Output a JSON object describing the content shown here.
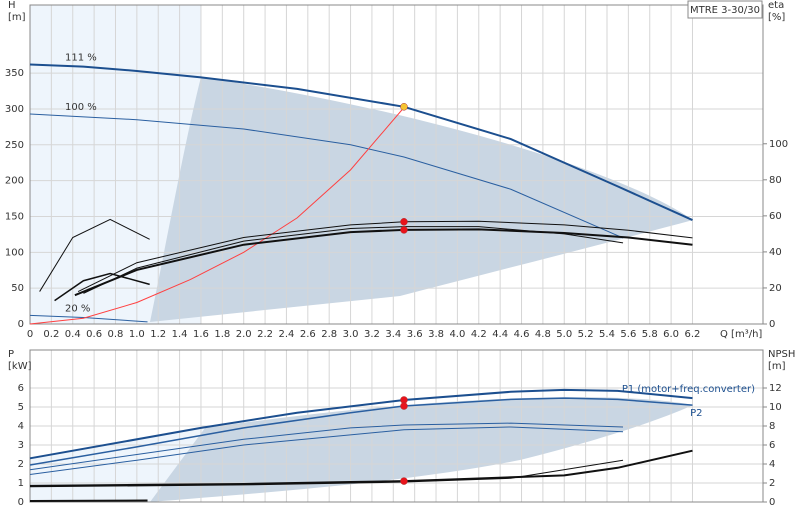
{
  "chart_data": [
    {
      "type": "line",
      "title": "MTRE 3-30/30",
      "ylabel": [
        "H",
        "[m]"
      ],
      "y2label": [
        "eta",
        "[%]"
      ],
      "xlabel": "Q [m³/h]",
      "xlim": [
        0,
        6.86
      ],
      "ylim": [
        0,
        445
      ],
      "y2lim": [
        0,
        177
      ],
      "grid": true,
      "xtick_labels": true,
      "xticks": [
        0,
        0.2,
        0.4,
        0.6,
        0.8,
        {
          "value": 1,
          "label": "1.0"
        },
        1.2,
        1.4,
        1.6,
        1.8,
        {
          "value": 2,
          "label": "2.0"
        },
        2.2,
        2.4,
        2.6,
        2.8,
        {
          "value": 3,
          "label": "3.0"
        },
        3.2,
        3.4,
        3.6,
        3.8,
        {
          "value": 4,
          "label": "4.0"
        },
        4.2,
        4.4,
        4.6,
        4.8,
        {
          "value": 5,
          "label": "5.0"
        },
        5.2,
        5.4,
        5.6,
        5.8,
        {
          "value": 6,
          "label": "6.0"
        },
        6.2
      ],
      "yticks": [
        0,
        50,
        100,
        150,
        200,
        250,
        300,
        350
      ],
      "y2ticks": [
        0,
        20,
        40,
        60,
        80,
        100
      ],
      "series": [
        {
          "name": "111 %",
          "color": "#1c4f8f",
          "width": 2,
          "x": [
            0,
            0.5,
            1,
            1.6,
            2.5,
            3.5,
            4.5,
            5.5,
            6.2
          ],
          "values": [
            362,
            359,
            353,
            344,
            328,
            303,
            258,
            192,
            145
          ]
        },
        {
          "name": "100 %",
          "color": "#2a5fa0",
          "width": 1,
          "x": [
            0,
            1,
            2,
            3,
            3.5,
            4.5,
            5.55
          ],
          "values": [
            293,
            285,
            272,
            250,
            233,
            188,
            120
          ]
        },
        {
          "name": "20 %",
          "color": "#2a5fa0",
          "width": 1,
          "x": [
            0,
            0.5,
            1.1
          ],
          "values": [
            12,
            9,
            3
          ]
        },
        {
          "color": "#ff4040",
          "width": 1,
          "x": [
            0,
            0.5,
            1,
            1.5,
            2,
            2.5,
            3,
            3.5
          ],
          "values": [
            0,
            8,
            30,
            62,
            100,
            148,
            215,
            302
          ]
        },
        {
          "color": "#111111",
          "width": 1,
          "axis": "y2",
          "x": [
            0.45,
            1,
            2,
            3,
            3.5,
            4.2,
            5,
            5.6,
            6.2
          ],
          "values": [
            18,
            34,
            48,
            55,
            56.7,
            57,
            55,
            52,
            47.8
          ]
        },
        {
          "color": "#111111",
          "width": 2,
          "axis": "y2",
          "x": [
            0.42,
            1,
            2,
            3,
            3.5,
            4.2,
            5,
            5.6,
            6.2
          ],
          "values": [
            16,
            30,
            44,
            51,
            52.2,
            52.5,
            50.5,
            48,
            44
          ]
        },
        {
          "color": "#111111",
          "width": 1,
          "axis": "y2",
          "x": [
            0.5,
            1,
            2,
            3,
            3.5,
            4.2,
            5,
            5.55
          ],
          "values": [
            17,
            31,
            46,
            53,
            54,
            54,
            50,
            45
          ]
        },
        {
          "color": "#111111",
          "width": 1,
          "axis": "y2",
          "x": [
            0.09,
            0.4,
            0.75,
            1.12
          ],
          "values": [
            18,
            48,
            58,
            47
          ]
        },
        {
          "color": "#111111",
          "width": 1.5,
          "axis": "y2",
          "x": [
            0.23,
            0.5,
            0.75,
            1.12
          ],
          "values": [
            13,
            24,
            28,
            22
          ]
        }
      ],
      "markers": [
        {
          "x": 3.5,
          "y": 303,
          "color": "#f6c431"
        },
        {
          "x": 3.5,
          "y": 56.7,
          "axis": "y2",
          "color": "#e8141c"
        },
        {
          "x": 3.5,
          "y": 52.2,
          "axis": "y2",
          "color": "#e8141c"
        }
      ]
    },
    {
      "type": "line",
      "ylabel": [
        "P",
        "[kW]"
      ],
      "y2label": [
        "NPSH",
        "[m]"
      ],
      "xlim": [
        0,
        6.86
      ],
      "ylim": [
        0,
        8
      ],
      "y2lim": [
        0,
        16
      ],
      "grid": true,
      "xtick_labels": false,
      "xticks": [
        0,
        0.2,
        0.4,
        0.6,
        0.8,
        1,
        1.2,
        1.4,
        1.6,
        1.8,
        2,
        2.2,
        2.4,
        2.6,
        2.8,
        3,
        3.2,
        3.4,
        3.6,
        3.8,
        4,
        4.2,
        4.4,
        4.6,
        4.8,
        5,
        5.2,
        5.4,
        5.6,
        5.8,
        6,
        6.2
      ],
      "yticks": [
        0,
        1,
        2,
        3,
        4,
        5,
        6
      ],
      "y2ticks": [
        0,
        2,
        4,
        6,
        8,
        10,
        12
      ],
      "series": [
        {
          "name": "P1 (motor+freq.converter)",
          "color": "#1c4f8f",
          "width": 2,
          "x": [
            0,
            1.6,
            2.5,
            3.5,
            4.5,
            5,
            5.5,
            6.2
          ],
          "values": [
            2.3,
            3.9,
            4.7,
            5.37,
            5.8,
            5.9,
            5.85,
            5.47
          ]
        },
        {
          "name": "P2",
          "color": "#2a5fa0",
          "width": 1.5,
          "x": [
            0,
            1,
            2,
            3,
            3.5,
            4.5,
            5,
            5.5,
            6.2
          ],
          "values": [
            1.95,
            2.9,
            3.9,
            4.7,
            5.05,
            5.4,
            5.47,
            5.4,
            5.1
          ]
        },
        {
          "color": "#2a5fa0",
          "width": 1,
          "x": [
            0,
            1,
            2,
            3,
            3.5,
            4.5,
            5.55
          ],
          "values": [
            1.7,
            2.5,
            3.3,
            3.9,
            4.05,
            4.15,
            3.95
          ]
        },
        {
          "color": "#2a5fa0",
          "width": 1,
          "x": [
            0,
            1,
            2,
            3.5,
            4.5,
            5.55
          ],
          "values": [
            1.45,
            2.2,
            3.0,
            3.8,
            3.95,
            3.7
          ]
        },
        {
          "color": "#111111",
          "width": 2,
          "axis": "y2",
          "x": [
            0,
            1,
            2,
            3,
            3.5,
            4,
            5,
            5.5,
            6.2
          ],
          "values": [
            1.7,
            1.8,
            1.9,
            2.1,
            2.2,
            2.4,
            2.8,
            3.6,
            5.4
          ]
        },
        {
          "color": "#111111",
          "width": 1,
          "axis": "y2",
          "x": [
            0,
            2,
            3.5,
            4.5,
            5.55
          ],
          "values": [
            1.6,
            1.8,
            2.1,
            2.5,
            4.4
          ]
        },
        {
          "color": "#111111",
          "width": 2,
          "x": [
            0,
            1.1
          ],
          "values": [
            0.05,
            0.08
          ]
        }
      ],
      "markers": [
        {
          "x": 3.5,
          "y": 5.37,
          "color": "#e8141c"
        },
        {
          "x": 3.5,
          "y": 5.05,
          "color": "#e8141c"
        },
        {
          "x": 3.5,
          "y": 2.2,
          "axis": "y2",
          "color": "#e8141c"
        }
      ]
    }
  ]
}
